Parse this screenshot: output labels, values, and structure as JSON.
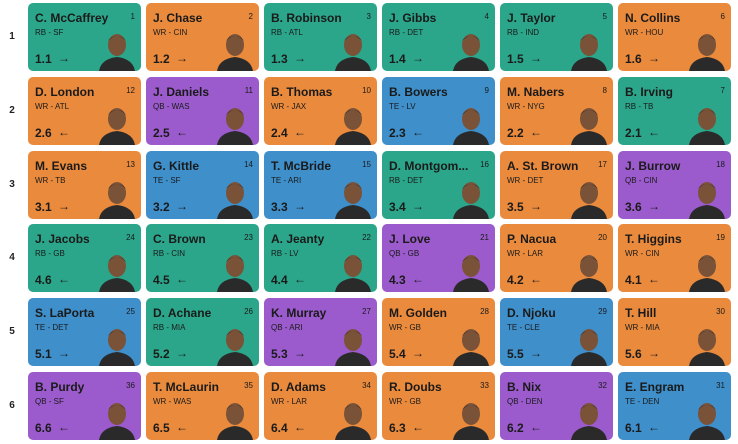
{
  "board": {
    "position_colors": {
      "RB": "#2ba68a",
      "WR": "#ea8a3d",
      "TE": "#3f8fcb",
      "QB": "#9b5bcc"
    },
    "rounds": [
      {
        "label": "1",
        "picks": [
          {
            "name": "C. McCaffrey",
            "pick": 1,
            "pos_team": "RB - SF",
            "adp": "1.1",
            "arrow": "→"
          },
          {
            "name": "J. Chase",
            "pick": 2,
            "pos_team": "WR - CIN",
            "adp": "1.2",
            "arrow": "→"
          },
          {
            "name": "B. Robinson",
            "pick": 3,
            "pos_team": "RB - ATL",
            "adp": "1.3",
            "arrow": "→"
          },
          {
            "name": "J. Gibbs",
            "pick": 4,
            "pos_team": "RB - DET",
            "adp": "1.4",
            "arrow": "→"
          },
          {
            "name": "J. Taylor",
            "pick": 5,
            "pos_team": "RB - IND",
            "adp": "1.5",
            "arrow": "→"
          },
          {
            "name": "N. Collins",
            "pick": 6,
            "pos_team": "WR - HOU",
            "adp": "1.6",
            "arrow": "→"
          }
        ]
      },
      {
        "label": "2",
        "picks": [
          {
            "name": "D. London",
            "pick": 12,
            "pos_team": "WR - ATL",
            "adp": "2.6",
            "arrow": "←"
          },
          {
            "name": "J. Daniels",
            "pick": 11,
            "pos_team": "QB - WAS",
            "adp": "2.5",
            "arrow": "←"
          },
          {
            "name": "B. Thomas",
            "pick": 10,
            "pos_team": "WR - JAX",
            "adp": "2.4",
            "arrow": "←"
          },
          {
            "name": "B. Bowers",
            "pick": 9,
            "pos_team": "TE - LV",
            "adp": "2.3",
            "arrow": "←"
          },
          {
            "name": "M. Nabers",
            "pick": 8,
            "pos_team": "WR - NYG",
            "adp": "2.2",
            "arrow": "←"
          },
          {
            "name": "B. Irving",
            "pick": 7,
            "pos_team": "RB - TB",
            "adp": "2.1",
            "arrow": "←"
          }
        ]
      },
      {
        "label": "3",
        "picks": [
          {
            "name": "M. Evans",
            "pick": 13,
            "pos_team": "WR - TB",
            "adp": "3.1",
            "arrow": "→"
          },
          {
            "name": "G. Kittle",
            "pick": 14,
            "pos_team": "TE - SF",
            "adp": "3.2",
            "arrow": "→"
          },
          {
            "name": "T. McBride",
            "pick": 15,
            "pos_team": "TE - ARI",
            "adp": "3.3",
            "arrow": "→"
          },
          {
            "name": "D. Montgom...",
            "pick": 16,
            "pos_team": "RB - DET",
            "adp": "3.4",
            "arrow": "→"
          },
          {
            "name": "A. St. Brown",
            "pick": 17,
            "pos_team": "WR - DET",
            "adp": "3.5",
            "arrow": "→"
          },
          {
            "name": "J. Burrow",
            "pick": 18,
            "pos_team": "QB - CIN",
            "adp": "3.6",
            "arrow": "→"
          }
        ]
      },
      {
        "label": "4",
        "picks": [
          {
            "name": "J. Jacobs",
            "pick": 24,
            "pos_team": "RB - GB",
            "adp": "4.6",
            "arrow": "←"
          },
          {
            "name": "C. Brown",
            "pick": 23,
            "pos_team": "RB - CIN",
            "adp": "4.5",
            "arrow": "←"
          },
          {
            "name": "A. Jeanty",
            "pick": 22,
            "pos_team": "RB - LV",
            "adp": "4.4",
            "arrow": "←"
          },
          {
            "name": "J. Love",
            "pick": 21,
            "pos_team": "QB - GB",
            "adp": "4.3",
            "arrow": "←"
          },
          {
            "name": "P. Nacua",
            "pick": 20,
            "pos_team": "WR - LAR",
            "adp": "4.2",
            "arrow": "←"
          },
          {
            "name": "T. Higgins",
            "pick": 19,
            "pos_team": "WR - CIN",
            "adp": "4.1",
            "arrow": "←"
          }
        ]
      },
      {
        "label": "5",
        "picks": [
          {
            "name": "S. LaPorta",
            "pick": 25,
            "pos_team": "TE - DET",
            "adp": "5.1",
            "arrow": "→"
          },
          {
            "name": "D. Achane",
            "pick": 26,
            "pos_team": "RB - MIA",
            "adp": "5.2",
            "arrow": "→"
          },
          {
            "name": "K. Murray",
            "pick": 27,
            "pos_team": "QB - ARI",
            "adp": "5.3",
            "arrow": "→"
          },
          {
            "name": "M. Golden",
            "pick": 28,
            "pos_team": "WR - GB",
            "adp": "5.4",
            "arrow": "→"
          },
          {
            "name": "D. Njoku",
            "pick": 29,
            "pos_team": "TE - CLE",
            "adp": "5.5",
            "arrow": "→"
          },
          {
            "name": "T. Hill",
            "pick": 30,
            "pos_team": "WR - MIA",
            "adp": "5.6",
            "arrow": "→"
          }
        ]
      },
      {
        "label": "6",
        "picks": [
          {
            "name": "B. Purdy",
            "pick": 36,
            "pos_team": "QB - SF",
            "adp": "6.6",
            "arrow": "←"
          },
          {
            "name": "T. McLaurin",
            "pick": 35,
            "pos_team": "WR - WAS",
            "adp": "6.5",
            "arrow": "←"
          },
          {
            "name": "D. Adams",
            "pick": 34,
            "pos_team": "WR - LAR",
            "adp": "6.4",
            "arrow": "←"
          },
          {
            "name": "R. Doubs",
            "pick": 33,
            "pos_team": "WR - GB",
            "adp": "6.3",
            "arrow": "←"
          },
          {
            "name": "B. Nix",
            "pick": 32,
            "pos_team": "QB - DEN",
            "adp": "6.2",
            "arrow": "←"
          },
          {
            "name": "E. Engram",
            "pick": 31,
            "pos_team": "TE - DEN",
            "adp": "6.1",
            "arrow": "←"
          }
        ]
      }
    ]
  }
}
